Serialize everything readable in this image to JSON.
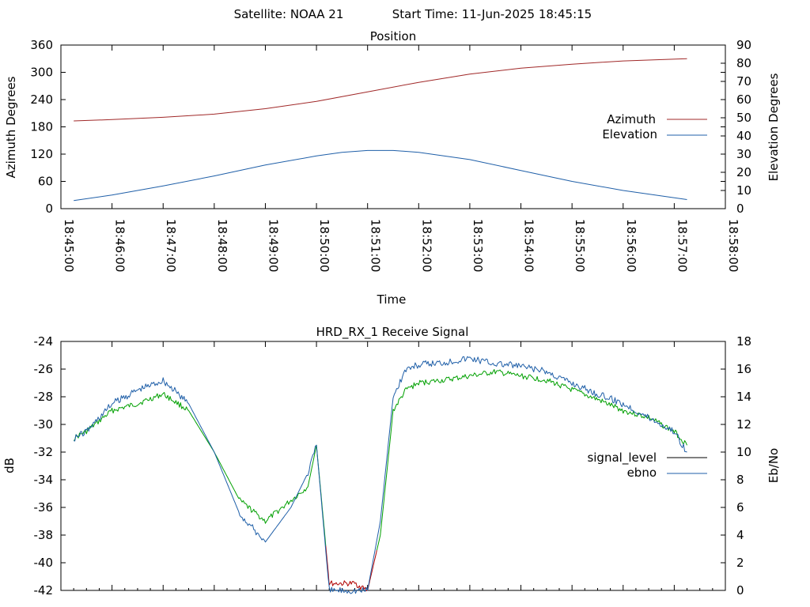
{
  "header": {
    "satellite_label": "Satellite: NOAA 21",
    "start_time_label": "Start Time: 11-Jun-2025 18:45:15"
  },
  "colors": {
    "azimuth": "#a02828",
    "elevation": "#1f5fa8",
    "signal_level": "#000000",
    "ebno": "#1f5fa8",
    "signal_fill_green": "#00a000",
    "signal_low_red": "#b00000"
  },
  "chart_data": [
    {
      "type": "line",
      "title": "Position",
      "xlabel": "Time",
      "ylabel": "Azimuth Degrees",
      "y2label": "Elevation Degrees",
      "xlim": [
        "18:45:00",
        "18:58:00"
      ],
      "xticks": [
        "18:45:00",
        "18:46:00",
        "18:47:00",
        "18:48:00",
        "18:49:00",
        "18:50:00",
        "18:51:00",
        "18:52:00",
        "18:53:00",
        "18:54:00",
        "18:55:00",
        "18:56:00",
        "18:57:00",
        "18:58:00"
      ],
      "ylim": [
        0,
        360
      ],
      "yticks": [
        0,
        60,
        120,
        180,
        240,
        300,
        360
      ],
      "y2lim": [
        0,
        90
      ],
      "y2ticks": [
        0,
        10,
        20,
        30,
        40,
        50,
        60,
        70,
        80,
        90
      ],
      "legend_position": "right",
      "series": [
        {
          "name": "Azimuth",
          "axis": "y",
          "x": [
            "18:45:15",
            "18:46:00",
            "18:47:00",
            "18:48:00",
            "18:49:00",
            "18:50:00",
            "18:51:00",
            "18:52:00",
            "18:53:00",
            "18:54:00",
            "18:55:00",
            "18:56:00",
            "18:57:15"
          ],
          "y": [
            193,
            196,
            201,
            208,
            220,
            236,
            257,
            278,
            296,
            309,
            318,
            325,
            330
          ]
        },
        {
          "name": "Elevation",
          "axis": "y2",
          "x": [
            "18:45:15",
            "18:46:00",
            "18:47:00",
            "18:48:00",
            "18:49:00",
            "18:50:00",
            "18:50:30",
            "18:51:00",
            "18:51:30",
            "18:52:00",
            "18:53:00",
            "18:54:00",
            "18:55:00",
            "18:56:00",
            "18:57:15"
          ],
          "y": [
            4.5,
            7.5,
            12.5,
            18,
            24,
            29,
            31,
            32,
            32,
            31,
            27,
            21,
            15,
            10,
            5
          ]
        }
      ]
    },
    {
      "type": "line",
      "title": "HRD_RX_1 Receive Signal",
      "xlabel": "",
      "ylabel": "dB",
      "y2label": "Eb/No",
      "xlim": [
        "18:45:00",
        "18:58:00"
      ],
      "ylim": [
        -42,
        -24
      ],
      "yticks": [
        -42,
        -40,
        -38,
        -36,
        -34,
        -32,
        -30,
        -28,
        -26,
        -24
      ],
      "y2lim": [
        0,
        18
      ],
      "y2ticks": [
        0,
        2,
        4,
        6,
        8,
        10,
        12,
        14,
        16,
        18
      ],
      "legend_position": "right",
      "series": [
        {
          "name": "signal_level",
          "axis": "y",
          "x": [
            "18:45:15",
            "18:45:30",
            "18:46:00",
            "18:46:30",
            "18:47:00",
            "18:47:30",
            "18:48:00",
            "18:48:30",
            "18:49:00",
            "18:49:30",
            "18:49:50",
            "18:50:00",
            "18:50:15",
            "18:50:45",
            "18:51:00",
            "18:51:15",
            "18:51:30",
            "18:51:45",
            "18:52:00",
            "18:52:30",
            "18:53:00",
            "18:53:30",
            "18:54:00",
            "18:54:30",
            "18:55:00",
            "18:55:30",
            "18:56:00",
            "18:56:30",
            "18:57:00",
            "18:57:15"
          ],
          "y": [
            -31,
            -30.5,
            -29,
            -28.5,
            -27.8,
            -29,
            -32,
            -35.5,
            -37,
            -35.5,
            -34.5,
            -31.5,
            -41.5,
            -41.5,
            -42,
            -38,
            -29,
            -27.5,
            -27,
            -26.8,
            -26.5,
            -26.2,
            -26.5,
            -26.8,
            -27.5,
            -28.2,
            -29,
            -29.5,
            -30.5,
            -31.5
          ],
          "display_color": "#00a000"
        },
        {
          "name": "ebno",
          "axis": "y2",
          "x": [
            "18:45:15",
            "18:45:30",
            "18:46:00",
            "18:46:30",
            "18:47:00",
            "18:47:30",
            "18:48:00",
            "18:48:30",
            "18:49:00",
            "18:49:30",
            "18:49:50",
            "18:50:00",
            "18:50:15",
            "18:51:00",
            "18:51:15",
            "18:51:30",
            "18:51:45",
            "18:52:00",
            "18:52:30",
            "18:53:00",
            "18:53:30",
            "18:54:00",
            "18:54:30",
            "18:55:00",
            "18:55:30",
            "18:56:00",
            "18:56:30",
            "18:57:00",
            "18:57:15"
          ],
          "y": [
            11,
            11.5,
            13.5,
            14.5,
            15.2,
            13.5,
            10,
            5.5,
            3.5,
            6,
            8.5,
            10.5,
            0,
            0,
            5,
            14,
            16,
            16.3,
            16.5,
            16.8,
            16.4,
            16.2,
            15.8,
            15,
            14.2,
            13.5,
            12.5,
            11.5,
            10
          ]
        }
      ]
    }
  ]
}
